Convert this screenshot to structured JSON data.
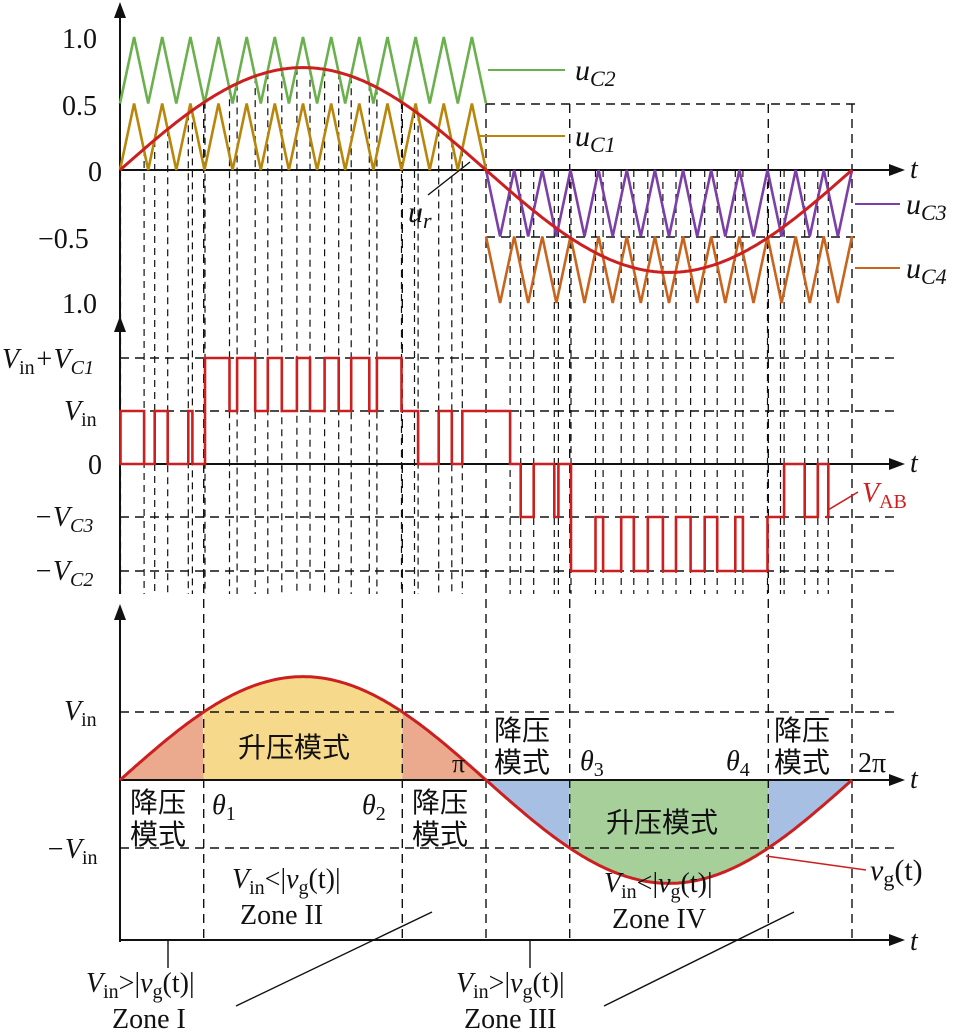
{
  "colors": {
    "uC1": "#b8860b",
    "uC2": "#6ab04c",
    "uC3": "#7b3fa6",
    "uC4": "#c8641e",
    "ref": "#cc1f1f",
    "boost_fill": "#f7d98c",
    "buck_fill_pos": "#eba98e",
    "buck_fill_neg": "#a6bfe3",
    "boost_fill_neg": "#a6cf9a"
  },
  "panel1": {
    "ticks": [
      "1.0",
      "0.5",
      "0",
      "−0.5",
      "1.0"
    ],
    "axis_t": "t",
    "labels": {
      "uC2": "u",
      "uC2_sub": "C2",
      "uC1": "u",
      "uC1_sub": "C1",
      "ur": "u",
      "ur_sub": "r",
      "uC3": "u",
      "uC3_sub": "C3",
      "uC4": "u",
      "uC4_sub": "C4"
    }
  },
  "panel2": {
    "ticks": {
      "vin_vc1_a": "V",
      "vin_vc1_a_sub": "in",
      "vin_vc1_b": "+V",
      "vin_vc1_b_sub": "C1",
      "vin": "V",
      "vin_sub": "in",
      "zero": "0",
      "vc3_minus": "−V",
      "vc3_sub": "C3",
      "vc2_minus": "−V",
      "vc2_sub": "C2"
    },
    "axis_t": "t",
    "vab": "V",
    "vab_sub": "AB"
  },
  "panel3": {
    "ticks": {
      "vin": "V",
      "vin_sub": "in",
      "neg_vin": "−V",
      "neg_vin_sub": "in"
    },
    "axis_t": "t",
    "pi": "π",
    "two_pi": "2π",
    "theta": "θ",
    "theta1_sub": "1",
    "theta2_sub": "2",
    "theta3_sub": "3",
    "theta4_sub": "4",
    "boost_mode": "升压模式",
    "buck_line1": "降压",
    "buck_line2": "模式",
    "vg": "v",
    "vg_sub": "g",
    "vg_arg": "(t)"
  },
  "zones": {
    "z1": "Zone I",
    "z2": "Zone II",
    "z3": "Zone III",
    "z4": "Zone IV",
    "V": "V",
    "in": "in",
    "gt": ">|",
    "lt": "<|",
    "v": "v",
    "g": "g",
    "tail": "(t)|"
  },
  "axis_t3": "t"
}
